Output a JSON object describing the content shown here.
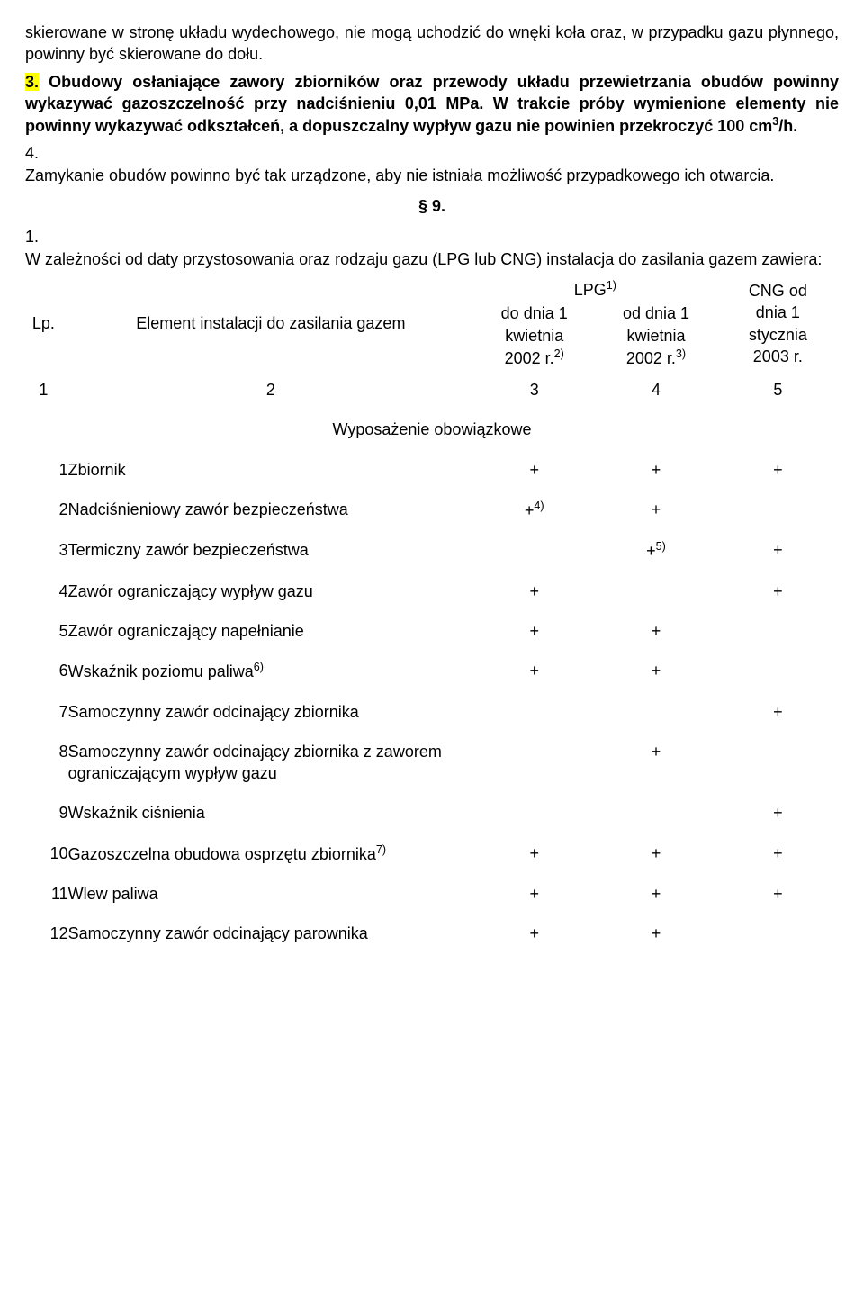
{
  "p1": "skierowane w stronę układu wydechowego, nie mogą uchodzić do wnęki koła oraz, w przypadku gazu płynnego, powinny być skierowane do dołu.",
  "num3": "3.",
  "p2": "Obudowy osłaniające zawory zbiorników oraz przewody układu przewietrzania obudów powinny wykazywać gazoszczelność przy nadciśnieniu 0,01 MPa. W trakcie próby wymienione elementy nie powinny wykazywać odkształceń, a dopuszczalny wypływ gazu nie powinien przekroczyć 100 cm",
  "p2_sup": "3",
  "p2_tail": "/h.",
  "num4": "4.",
  "p3": "Zamykanie obudów powinno być tak urządzone, aby nie istniała możliwość przypadkowego ich otwarcia.",
  "section": "§ 9.",
  "num1": "1.",
  "p4": "W zależności od daty przystosowania oraz rodzaju gazu (LPG lub CNG) instalacja do zasilania gazem zawiera:",
  "header": {
    "lp": "Lp.",
    "element": "Element instalacji do zasilania gazem",
    "lpg": "LPG",
    "lpg_sup": "1)",
    "col3a": "do dnia 1",
    "col3b": "kwietnia",
    "col3c": "2002 r.",
    "col3sup": "2)",
    "col4a": "od dnia 1",
    "col4b": "kwietnia",
    "col4c": "2002 r.",
    "col4sup": "3)",
    "cng1": "CNG od",
    "cng2": "dnia 1",
    "cng3": "stycznia",
    "cng4": "2003 r."
  },
  "numrow": {
    "c1": "1",
    "c2": "2",
    "c3": "3",
    "c4": "4",
    "c5": "5"
  },
  "equip_header": "Wyposażenie obowiązkowe",
  "rows": [
    {
      "lp": "1",
      "name": "Zbiornik",
      "sup": "",
      "c3": "+",
      "c3sup": "",
      "c4": "+",
      "c4sup": "",
      "c5": "+"
    },
    {
      "lp": "2",
      "name": "Nadciśnieniowy zawór bezpieczeństwa",
      "sup": "",
      "c3": "+",
      "c3sup": "4)",
      "c4": "+",
      "c4sup": "",
      "c5": ""
    },
    {
      "lp": "3",
      "name": "Termiczny zawór bezpieczeństwa",
      "sup": "",
      "c3": "",
      "c3sup": "",
      "c4": "+",
      "c4sup": "5)",
      "c5": "+"
    },
    {
      "lp": "4",
      "name": "Zawór ograniczający wypływ gazu",
      "sup": "",
      "c3": "+",
      "c3sup": "",
      "c4": "",
      "c4sup": "",
      "c5": "+"
    },
    {
      "lp": "5",
      "name": "Zawór ograniczający napełnianie",
      "sup": "",
      "c3": "+",
      "c3sup": "",
      "c4": "+",
      "c4sup": "",
      "c5": ""
    },
    {
      "lp": "6",
      "name": "Wskaźnik poziomu paliwa",
      "sup": "6)",
      "c3": "+",
      "c3sup": "",
      "c4": "+",
      "c4sup": "",
      "c5": ""
    },
    {
      "lp": "7",
      "name": "Samoczynny zawór odcinający zbiornika",
      "sup": "",
      "c3": "",
      "c3sup": "",
      "c4": "",
      "c4sup": "",
      "c5": "+"
    },
    {
      "lp": "8",
      "name": "Samoczynny zawór odcinający zbiornika z zaworem ograniczającym wypływ gazu",
      "sup": "",
      "c3": "",
      "c3sup": "",
      "c4": "+",
      "c4sup": "",
      "c5": ""
    },
    {
      "lp": "9",
      "name": "Wskaźnik ciśnienia",
      "sup": "",
      "c3": "",
      "c3sup": "",
      "c4": "",
      "c4sup": "",
      "c5": "+"
    },
    {
      "lp": "10",
      "name": "Gazoszczelna obudowa osprzętu zbiornika",
      "sup": "7)",
      "c3": "+",
      "c3sup": "",
      "c4": "+",
      "c4sup": "",
      "c5": "+"
    },
    {
      "lp": "11",
      "name": "Wlew paliwa",
      "sup": "",
      "c3": "+",
      "c3sup": "",
      "c4": "+",
      "c4sup": "",
      "c5": "+"
    },
    {
      "lp": "12",
      "name": "Samoczynny zawór odcinający parownika",
      "sup": "",
      "c3": "+",
      "c3sup": "",
      "c4": "+",
      "c4sup": "",
      "c5": ""
    }
  ]
}
